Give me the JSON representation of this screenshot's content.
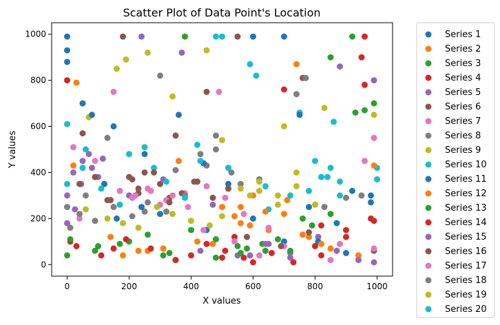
{
  "chart_data": {
    "type": "scatter",
    "title": "Scatter Plot of Data Point's Location",
    "xlabel": "X values",
    "ylabel": "Y values",
    "xlim": [
      -50,
      1050
    ],
    "ylim": [
      -50,
      1050
    ],
    "x_ticks": [
      "0",
      "200",
      "400",
      "600",
      "800",
      "1000"
    ],
    "y_ticks": [
      "0",
      "200",
      "400",
      "600",
      "800",
      "1000"
    ],
    "x_tick_values": [
      0,
      200,
      400,
      600,
      800,
      1000
    ],
    "y_tick_values": [
      0,
      200,
      400,
      600,
      800,
      1000
    ],
    "grid": false,
    "legend_position": "outside-right",
    "colors": [
      "#1f77b4",
      "#ff7f0e",
      "#2ca02c",
      "#d62728",
      "#9467bd",
      "#8c564b",
      "#e377c2",
      "#7f7f7f",
      "#bcbd22",
      "#17becf"
    ],
    "series": [
      {
        "name": "Series 1",
        "x": [
          0,
          0,
          50,
          120,
          300,
          450,
          600,
          700,
          900,
          980,
          150,
          250,
          520,
          780
        ],
        "y": [
          990,
          930,
          700,
          350,
          220,
          150,
          200,
          100,
          50,
          300,
          600,
          480,
          330,
          250
        ]
      },
      {
        "name": "Series 2",
        "x": [
          30,
          180,
          260,
          350,
          420,
          500,
          560,
          650,
          740,
          850,
          940,
          600,
          700,
          780
        ],
        "y": [
          790,
          40,
          60,
          20,
          100,
          250,
          180,
          150,
          870,
          70,
          40,
          300,
          220,
          120
        ]
      },
      {
        "name": "Series 3",
        "x": [
          0,
          100,
          200,
          330,
          400,
          480,
          580,
          680,
          760,
          850,
          920,
          960,
          550,
          640
        ],
        "y": [
          40,
          80,
          100,
          50,
          150,
          30,
          70,
          110,
          200,
          900,
          990,
          670,
          80,
          60
        ]
      },
      {
        "name": "Series 4",
        "x": [
          0,
          10,
          150,
          400,
          500,
          600,
          700,
          800,
          900,
          950,
          960,
          980,
          540,
          820
        ],
        "y": [
          800,
          100,
          70,
          40,
          30,
          10,
          760,
          80,
          150,
          900,
          990,
          200,
          120,
          170
        ]
      },
      {
        "name": "Series 5",
        "x": [
          0,
          20,
          50,
          70,
          100,
          240,
          370,
          550,
          880,
          990,
          650,
          720,
          810,
          430
        ],
        "y": [
          300,
          400,
          450,
          480,
          380,
          990,
          920,
          40,
          860,
          800,
          90,
          50,
          120,
          60
        ]
      },
      {
        "name": "Series 6",
        "x": [
          50,
          90,
          180,
          210,
          250,
          300,
          350,
          450,
          550,
          760,
          140,
          230,
          330,
          410
        ],
        "y": [
          570,
          380,
          990,
          370,
          400,
          350,
          560,
          750,
          990,
          810,
          280,
          310,
          290,
          360
        ]
      },
      {
        "name": "Series 7",
        "x": [
          40,
          150,
          220,
          270,
          320,
          380,
          440,
          490,
          540,
          620,
          990,
          850,
          960,
          700
        ],
        "y": [
          200,
          750,
          300,
          320,
          280,
          310,
          150,
          750,
          100,
          40,
          550,
          20,
          450,
          80
        ]
      },
      {
        "name": "Series 8",
        "x": [
          0,
          60,
          130,
          300,
          350,
          420,
          450,
          480,
          530,
          620,
          770,
          830,
          950,
          250
        ],
        "y": [
          250,
          300,
          550,
          820,
          410,
          360,
          430,
          500,
          400,
          370,
          810,
          250,
          300,
          230
        ]
      },
      {
        "name": "Series 9",
        "x": [
          70,
          160,
          190,
          260,
          340,
          450,
          500,
          590,
          700,
          740,
          830,
          990,
          620,
          680
        ],
        "y": [
          640,
          850,
          890,
          920,
          730,
          930,
          540,
          300,
          600,
          400,
          680,
          650,
          320,
          260
        ]
      },
      {
        "name": "Series 10",
        "x": [
          0,
          60,
          200,
          280,
          420,
          500,
          590,
          610,
          650,
          750,
          800,
          840,
          860,
          880,
          1000
        ],
        "y": [
          350,
          500,
          480,
          420,
          520,
          990,
          870,
          820,
          240,
          660,
          450,
          380,
          620,
          360,
          420
        ]
      },
      {
        "name": "Series 11",
        "x": [
          0,
          80,
          160,
          240,
          360,
          520,
          600,
          700,
          750,
          810,
          870,
          920,
          980,
          440
        ],
        "y": [
          880,
          650,
          200,
          250,
          650,
          350,
          990,
          990,
          650,
          100,
          180,
          320,
          270,
          440
        ]
      },
      {
        "name": "Series 12",
        "x": [
          20,
          140,
          230,
          310,
          360,
          470,
          540,
          590,
          640,
          710,
          760,
          820,
          990,
          560
        ],
        "y": [
          430,
          120,
          60,
          70,
          450,
          90,
          210,
          170,
          230,
          280,
          130,
          90,
          430,
          250
        ]
      },
      {
        "name": "Series 13",
        "x": [
          10,
          90,
          170,
          260,
          310,
          380,
          480,
          560,
          630,
          720,
          790,
          850,
          930,
          990
        ],
        "y": [
          110,
          60,
          90,
          130,
          40,
          990,
          110,
          50,
          90,
          60,
          170,
          220,
          660,
          700
        ]
      },
      {
        "name": "Series 14",
        "x": [
          30,
          110,
          190,
          270,
          350,
          450,
          510,
          570,
          660,
          730,
          820,
          900,
          960,
          990
        ],
        "y": [
          80,
          40,
          110,
          70,
          20,
          90,
          60,
          30,
          50,
          10,
          40,
          120,
          780,
          190
        ]
      },
      {
        "name": "Series 15",
        "x": [
          0,
          25,
          45,
          80,
          115,
          200,
          310,
          470,
          590,
          640,
          720,
          870,
          940,
          990
        ],
        "y": [
          180,
          240,
          350,
          420,
          460,
          300,
          370,
          260,
          40,
          90,
          30,
          60,
          20,
          10
        ]
      },
      {
        "name": "Series 16",
        "x": [
          40,
          130,
          200,
          230,
          280,
          330,
          370,
          420,
          470,
          520,
          580,
          690,
          780,
          990
        ],
        "y": [
          350,
          280,
          380,
          330,
          400,
          270,
          310,
          360,
          290,
          330,
          120,
          80,
          140,
          60
        ]
      },
      {
        "name": "Series 17",
        "x": [
          20,
          90,
          170,
          210,
          260,
          300,
          340,
          390,
          450,
          510,
          570,
          650,
          880,
          990
        ],
        "y": [
          510,
          450,
          320,
          290,
          330,
          260,
          300,
          250,
          340,
          290,
          220,
          160,
          90,
          70
        ]
      },
      {
        "name": "Series 18",
        "x": [
          10,
          40,
          90,
          150,
          210,
          260,
          320,
          380,
          430,
          480,
          520,
          560,
          740,
          900
        ],
        "y": [
          160,
          220,
          190,
          250,
          210,
          270,
          230,
          300,
          480,
          560,
          420,
          350,
          740,
          290
        ]
      },
      {
        "name": "Series 19",
        "x": [
          60,
          130,
          180,
          230,
          290,
          340,
          400,
          460,
          500,
          560,
          620,
          680,
          740,
          800
        ],
        "y": [
          240,
          200,
          180,
          160,
          250,
          220,
          190,
          170,
          210,
          330,
          360,
          300,
          340,
          260
        ]
      },
      {
        "name": "Series 20",
        "x": [
          0,
          50,
          110,
          170,
          250,
          320,
          380,
          430,
          480,
          520,
          640,
          720,
          780,
          820,
          850,
          880,
          1000
        ],
        "y": [
          610,
          420,
          330,
          260,
          510,
          360,
          290,
          450,
          990,
          420,
          340,
          300,
          320,
          380,
          420,
          300,
          370
        ]
      }
    ]
  }
}
